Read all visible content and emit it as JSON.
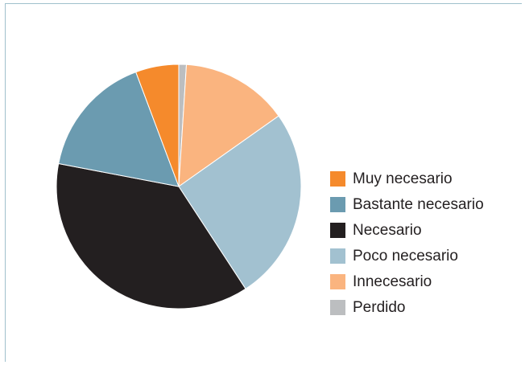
{
  "chart_data": {
    "type": "pie",
    "categories": [
      "Muy necesario",
      "Bastante necesario",
      "Necesario",
      "Poco necesario",
      "Innecesario",
      "Perdido"
    ],
    "values": [
      5.7,
      16.3,
      37.2,
      25.6,
      14.2,
      1.0
    ],
    "colors": [
      "#f58a2c",
      "#6b9bb0",
      "#231f20",
      "#a2c1d0",
      "#fab47f",
      "#bcbec0"
    ],
    "legend_position": "right",
    "title": "",
    "start_category": "Perdido",
    "direction": "clockwise-from-top"
  }
}
